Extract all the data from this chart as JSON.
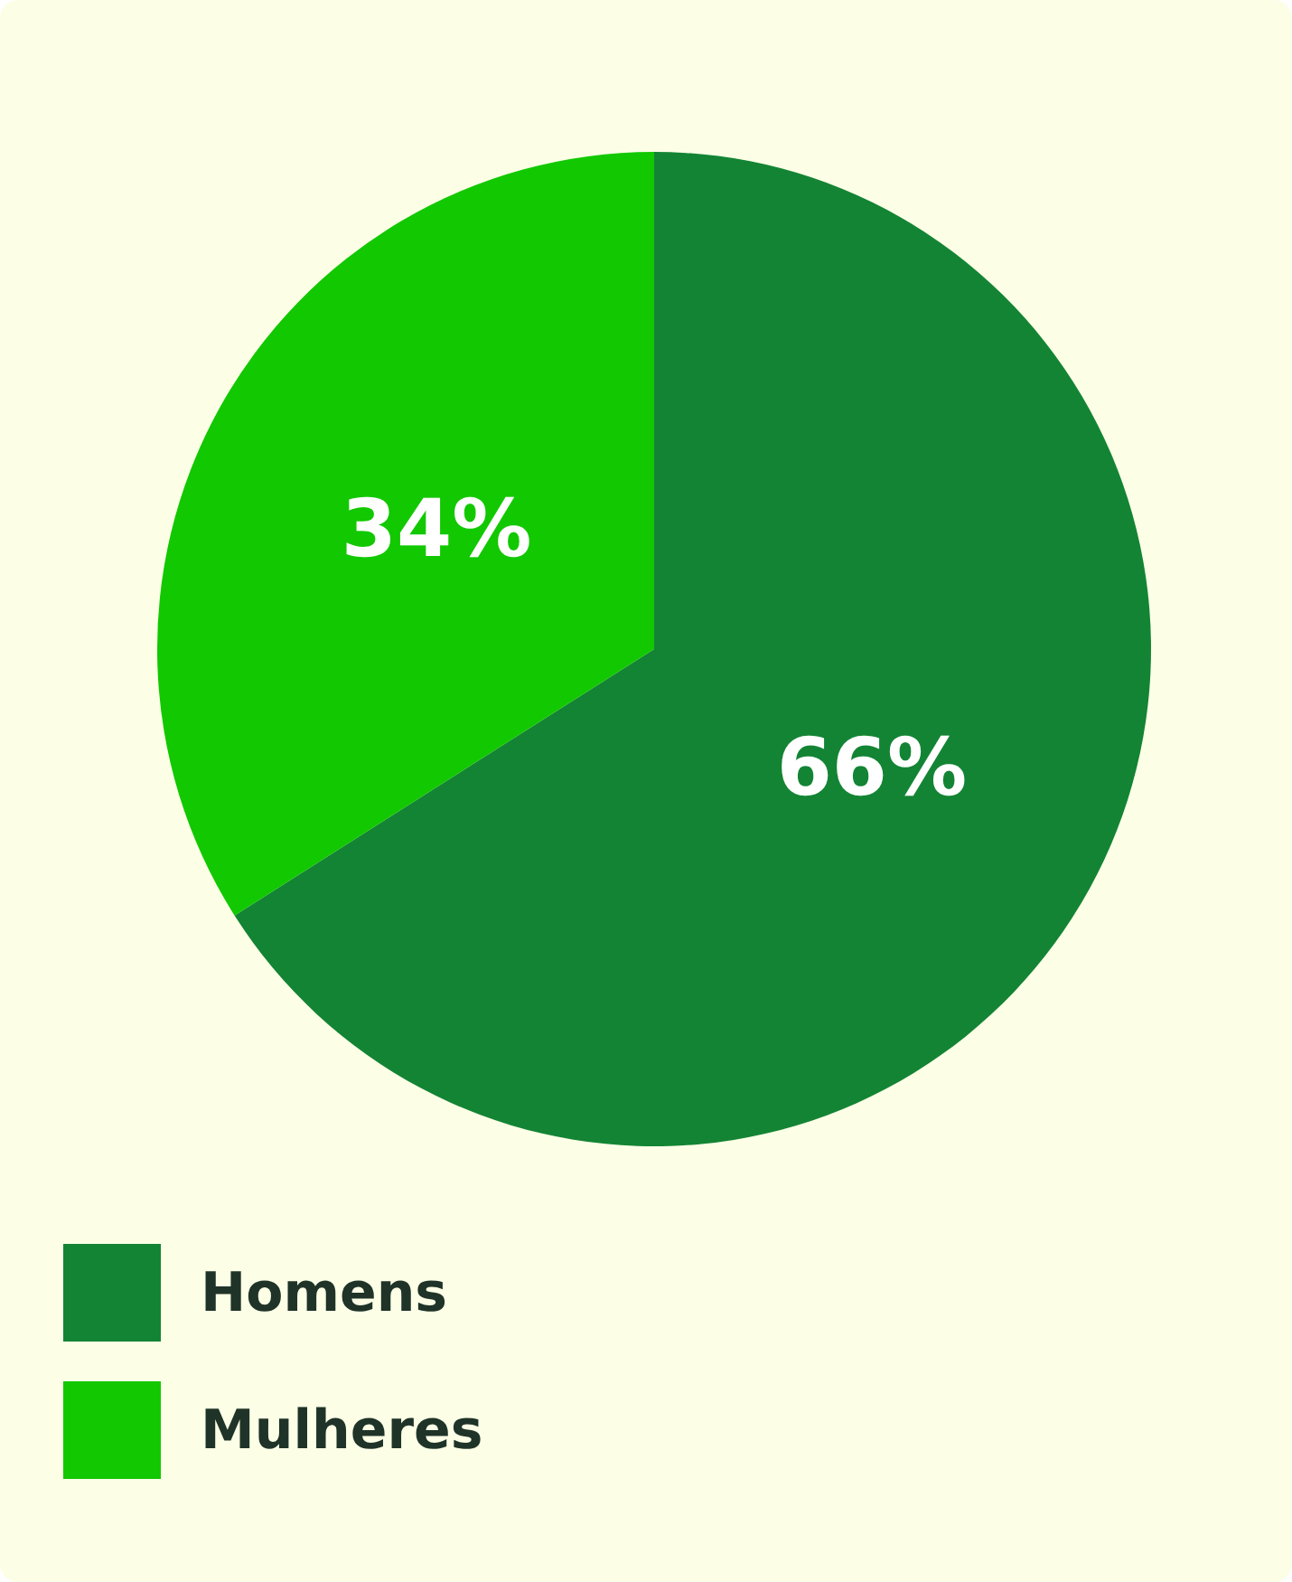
{
  "chart_data": {
    "type": "pie",
    "categories": [
      "Homens",
      "Mulheres"
    ],
    "values": [
      66,
      34
    ],
    "colors": [
      "#138434",
      "#12c800"
    ],
    "value_labels": [
      "66%",
      "34%"
    ],
    "legend": "bottom left"
  }
}
